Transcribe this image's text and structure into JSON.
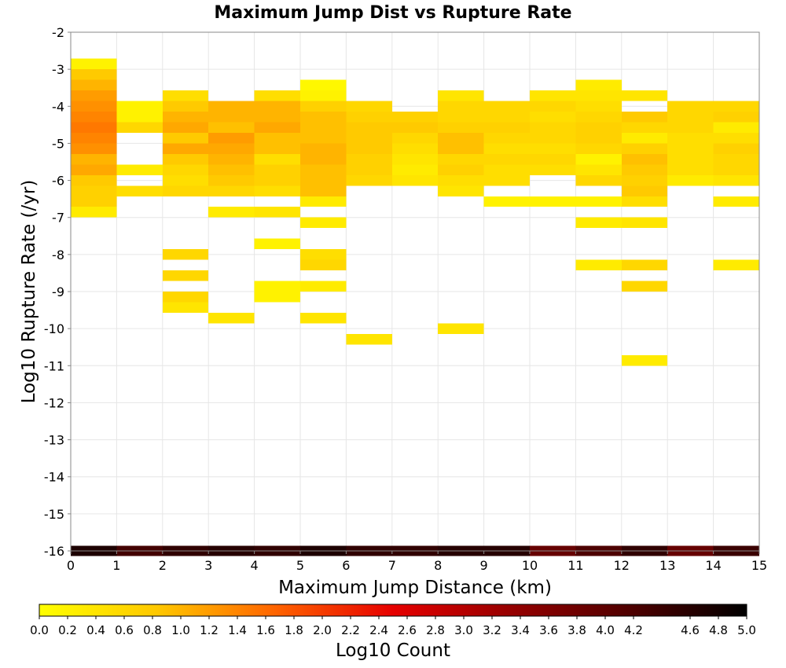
{
  "chart_data": {
    "type": "heatmap",
    "title": "Maximum Jump Dist vs Rupture Rate",
    "xlabel": "Maximum Jump Distance (km)",
    "ylabel": "Log10 Rupture Rate (/yr)",
    "xlim": [
      0,
      15
    ],
    "ylim": [
      -16,
      -2
    ],
    "x_ticks": [
      "0",
      "1",
      "2",
      "3",
      "4",
      "5",
      "6",
      "7",
      "8",
      "9",
      "10",
      "11",
      "12",
      "13",
      "14",
      "15"
    ],
    "y_ticks": [
      "-2",
      "-3",
      "-4",
      "-5",
      "-6",
      "-7",
      "-8",
      "-9",
      "-10",
      "-11",
      "-12",
      "-13",
      "-14",
      "-15",
      "-16"
    ],
    "x_bin_width": 1,
    "y_bin_height": 0.2857,
    "grid": true,
    "colorbar": {
      "label": "Log10 Count",
      "range": [
        0,
        5
      ],
      "ticks": [
        "0.0",
        "0.2",
        "0.4",
        "0.6",
        "0.8",
        "1.0",
        "1.2",
        "1.4",
        "1.6",
        "1.8",
        "2.0",
        "2.2",
        "2.4",
        "2.6",
        "2.8",
        "3.0",
        "3.2",
        "3.4",
        "3.6",
        "3.8",
        "4.0",
        "4.2",
        "4.6",
        "4.8",
        "5.0"
      ],
      "colormap": [
        "#ffff00",
        "#ffc800",
        "#ff6400",
        "#e60000",
        "#960000",
        "#500000",
        "#000000"
      ]
    },
    "cells": [
      {
        "x": 0,
        "y": -2.857,
        "v": 0.2
      },
      {
        "x": 0,
        "y": -3.143,
        "v": 0.8
      },
      {
        "x": 0,
        "y": -3.429,
        "v": 1.0
      },
      {
        "x": 0,
        "y": -3.714,
        "v": 1.2
      },
      {
        "x": 0,
        "y": -4.0,
        "v": 1.3
      },
      {
        "x": 0,
        "y": -4.286,
        "v": 1.4
      },
      {
        "x": 0,
        "y": -4.571,
        "v": 1.5
      },
      {
        "x": 0,
        "y": -4.857,
        "v": 1.4
      },
      {
        "x": 0,
        "y": -5.143,
        "v": 1.3
      },
      {
        "x": 0,
        "y": -5.429,
        "v": 1.0
      },
      {
        "x": 0,
        "y": -5.714,
        "v": 1.1
      },
      {
        "x": 0,
        "y": -6.0,
        "v": 0.8
      },
      {
        "x": 0,
        "y": -6.286,
        "v": 0.7
      },
      {
        "x": 0,
        "y": -6.571,
        "v": 0.7
      },
      {
        "x": 0,
        "y": -6.857,
        "v": 0.3
      },
      {
        "x": 1,
        "y": -4.0,
        "v": 0.2
      },
      {
        "x": 1,
        "y": -4.286,
        "v": 0.2
      },
      {
        "x": 1,
        "y": -4.571,
        "v": 0.6
      },
      {
        "x": 1,
        "y": -5.714,
        "v": 0.3
      },
      {
        "x": 1,
        "y": -6.286,
        "v": 0.5
      },
      {
        "x": 2,
        "y": -3.714,
        "v": 0.5
      },
      {
        "x": 2,
        "y": -4.0,
        "v": 0.8
      },
      {
        "x": 2,
        "y": -4.286,
        "v": 1.0
      },
      {
        "x": 2,
        "y": -4.571,
        "v": 1.1
      },
      {
        "x": 2,
        "y": -4.857,
        "v": 0.8
      },
      {
        "x": 2,
        "y": -5.143,
        "v": 1.1
      },
      {
        "x": 2,
        "y": -5.429,
        "v": 0.8
      },
      {
        "x": 2,
        "y": -5.714,
        "v": 0.6
      },
      {
        "x": 2,
        "y": -6.0,
        "v": 0.5
      },
      {
        "x": 2,
        "y": -6.286,
        "v": 0.6
      },
      {
        "x": 2,
        "y": -8.0,
        "v": 0.6
      },
      {
        "x": 2,
        "y": -8.571,
        "v": 0.6
      },
      {
        "x": 2,
        "y": -9.143,
        "v": 0.6
      },
      {
        "x": 2,
        "y": -9.429,
        "v": 0.4
      },
      {
        "x": 3,
        "y": -4.0,
        "v": 1.0
      },
      {
        "x": 3,
        "y": -4.286,
        "v": 1.0
      },
      {
        "x": 3,
        "y": -4.571,
        "v": 0.9
      },
      {
        "x": 3,
        "y": -4.857,
        "v": 1.2
      },
      {
        "x": 3,
        "y": -5.143,
        "v": 1.1
      },
      {
        "x": 3,
        "y": -5.429,
        "v": 1.0
      },
      {
        "x": 3,
        "y": -5.714,
        "v": 0.9
      },
      {
        "x": 3,
        "y": -6.0,
        "v": 0.8
      },
      {
        "x": 3,
        "y": -6.286,
        "v": 0.6
      },
      {
        "x": 3,
        "y": -6.857,
        "v": 0.3
      },
      {
        "x": 3,
        "y": -9.714,
        "v": 0.4
      },
      {
        "x": 4,
        "y": -3.714,
        "v": 0.5
      },
      {
        "x": 4,
        "y": -4.0,
        "v": 1.0
      },
      {
        "x": 4,
        "y": -4.286,
        "v": 1.0
      },
      {
        "x": 4,
        "y": -4.571,
        "v": 1.1
      },
      {
        "x": 4,
        "y": -4.857,
        "v": 0.9
      },
      {
        "x": 4,
        "y": -5.143,
        "v": 0.9
      },
      {
        "x": 4,
        "y": -5.429,
        "v": 0.5
      },
      {
        "x": 4,
        "y": -5.714,
        "v": 0.7
      },
      {
        "x": 4,
        "y": -6.0,
        "v": 0.7
      },
      {
        "x": 4,
        "y": -6.286,
        "v": 0.5
      },
      {
        "x": 4,
        "y": -6.857,
        "v": 0.4
      },
      {
        "x": 4,
        "y": -7.714,
        "v": 0.2
      },
      {
        "x": 4,
        "y": -8.857,
        "v": 0.2
      },
      {
        "x": 4,
        "y": -9.143,
        "v": 0.2
      },
      {
        "x": 5,
        "y": -3.429,
        "v": 0.1
      },
      {
        "x": 5,
        "y": -3.714,
        "v": 0.2
      },
      {
        "x": 5,
        "y": -4.0,
        "v": 0.7
      },
      {
        "x": 5,
        "y": -4.286,
        "v": 0.9
      },
      {
        "x": 5,
        "y": -4.571,
        "v": 0.9
      },
      {
        "x": 5,
        "y": -4.857,
        "v": 0.9
      },
      {
        "x": 5,
        "y": -5.143,
        "v": 1.0
      },
      {
        "x": 5,
        "y": -5.429,
        "v": 1.0
      },
      {
        "x": 5,
        "y": -5.714,
        "v": 0.9
      },
      {
        "x": 5,
        "y": -6.0,
        "v": 0.9
      },
      {
        "x": 5,
        "y": -6.286,
        "v": 0.9
      },
      {
        "x": 5,
        "y": -6.571,
        "v": 0.3
      },
      {
        "x": 5,
        "y": -7.143,
        "v": 0.3
      },
      {
        "x": 5,
        "y": -8.0,
        "v": 0.5
      },
      {
        "x": 5,
        "y": -8.286,
        "v": 0.6
      },
      {
        "x": 5,
        "y": -8.857,
        "v": 0.3
      },
      {
        "x": 5,
        "y": -9.714,
        "v": 0.4
      },
      {
        "x": 6,
        "y": -4.0,
        "v": 0.6
      },
      {
        "x": 6,
        "y": -4.286,
        "v": 0.7
      },
      {
        "x": 6,
        "y": -4.571,
        "v": 0.8
      },
      {
        "x": 6,
        "y": -4.857,
        "v": 0.8
      },
      {
        "x": 6,
        "y": -5.143,
        "v": 0.8
      },
      {
        "x": 6,
        "y": -5.429,
        "v": 0.7
      },
      {
        "x": 6,
        "y": -5.714,
        "v": 0.7
      },
      {
        "x": 6,
        "y": -6.0,
        "v": 0.6
      },
      {
        "x": 6,
        "y": -10.286,
        "v": 0.4
      },
      {
        "x": 7,
        "y": -4.286,
        "v": 0.7
      },
      {
        "x": 7,
        "y": -4.571,
        "v": 0.8
      },
      {
        "x": 7,
        "y": -4.857,
        "v": 0.6
      },
      {
        "x": 7,
        "y": -5.143,
        "v": 0.5
      },
      {
        "x": 7,
        "y": -5.429,
        "v": 0.4
      },
      {
        "x": 7,
        "y": -5.714,
        "v": 0.3
      },
      {
        "x": 7,
        "y": -6.0,
        "v": 0.4
      },
      {
        "x": 8,
        "y": -3.714,
        "v": 0.4
      },
      {
        "x": 8,
        "y": -4.0,
        "v": 0.6
      },
      {
        "x": 8,
        "y": -4.286,
        "v": 0.6
      },
      {
        "x": 8,
        "y": -4.571,
        "v": 0.7
      },
      {
        "x": 8,
        "y": -4.857,
        "v": 0.9
      },
      {
        "x": 8,
        "y": -5.143,
        "v": 0.9
      },
      {
        "x": 8,
        "y": -5.429,
        "v": 0.6
      },
      {
        "x": 8,
        "y": -5.714,
        "v": 0.7
      },
      {
        "x": 8,
        "y": -6.0,
        "v": 0.5
      },
      {
        "x": 8,
        "y": -6.286,
        "v": 0.4
      },
      {
        "x": 8,
        "y": -10.0,
        "v": 0.4
      },
      {
        "x": 9,
        "y": -4.0,
        "v": 0.6
      },
      {
        "x": 9,
        "y": -4.286,
        "v": 0.6
      },
      {
        "x": 9,
        "y": -4.571,
        "v": 0.7
      },
      {
        "x": 9,
        "y": -4.857,
        "v": 0.6
      },
      {
        "x": 9,
        "y": -5.143,
        "v": 0.5
      },
      {
        "x": 9,
        "y": -5.429,
        "v": 0.6
      },
      {
        "x": 9,
        "y": -5.714,
        "v": 0.5
      },
      {
        "x": 9,
        "y": -6.0,
        "v": 0.5
      },
      {
        "x": 9,
        "y": -6.571,
        "v": 0.2
      },
      {
        "x": 10,
        "y": -3.714,
        "v": 0.4
      },
      {
        "x": 10,
        "y": -4.0,
        "v": 0.6
      },
      {
        "x": 10,
        "y": -4.286,
        "v": 0.5
      },
      {
        "x": 10,
        "y": -4.571,
        "v": 0.6
      },
      {
        "x": 10,
        "y": -4.857,
        "v": 0.6
      },
      {
        "x": 10,
        "y": -5.143,
        "v": 0.5
      },
      {
        "x": 10,
        "y": -5.429,
        "v": 0.6
      },
      {
        "x": 10,
        "y": -5.714,
        "v": 0.5
      },
      {
        "x": 10,
        "y": -6.571,
        "v": 0.2
      },
      {
        "x": 11,
        "y": -3.429,
        "v": 0.3
      },
      {
        "x": 11,
        "y": -3.714,
        "v": 0.4
      },
      {
        "x": 11,
        "y": -4.0,
        "v": 0.5
      },
      {
        "x": 11,
        "y": -4.286,
        "v": 0.6
      },
      {
        "x": 11,
        "y": -4.571,
        "v": 0.7
      },
      {
        "x": 11,
        "y": -4.857,
        "v": 0.7
      },
      {
        "x": 11,
        "y": -5.143,
        "v": 0.6
      },
      {
        "x": 11,
        "y": -5.429,
        "v": 0.2
      },
      {
        "x": 11,
        "y": -5.714,
        "v": 0.4
      },
      {
        "x": 11,
        "y": -6.0,
        "v": 0.6
      },
      {
        "x": 11,
        "y": -6.571,
        "v": 0.2
      },
      {
        "x": 11,
        "y": -7.143,
        "v": 0.3
      },
      {
        "x": 11,
        "y": -8.286,
        "v": 0.3
      },
      {
        "x": 12,
        "y": -3.714,
        "v": 0.4
      },
      {
        "x": 12,
        "y": -4.286,
        "v": 0.8
      },
      {
        "x": 12,
        "y": -4.571,
        "v": 0.6
      },
      {
        "x": 12,
        "y": -4.857,
        "v": 0.3
      },
      {
        "x": 12,
        "y": -5.143,
        "v": 0.7
      },
      {
        "x": 12,
        "y": -5.429,
        "v": 0.9
      },
      {
        "x": 12,
        "y": -5.714,
        "v": 0.8
      },
      {
        "x": 12,
        "y": -6.0,
        "v": 0.7
      },
      {
        "x": 12,
        "y": -6.286,
        "v": 0.8
      },
      {
        "x": 12,
        "y": -6.571,
        "v": 0.5
      },
      {
        "x": 12,
        "y": -7.143,
        "v": 0.4
      },
      {
        "x": 12,
        "y": -8.286,
        "v": 0.6
      },
      {
        "x": 12,
        "y": -8.857,
        "v": 0.6
      },
      {
        "x": 12,
        "y": -10.857,
        "v": 0.3
      },
      {
        "x": 13,
        "y": -4.0,
        "v": 0.6
      },
      {
        "x": 13,
        "y": -4.286,
        "v": 0.6
      },
      {
        "x": 13,
        "y": -4.571,
        "v": 0.6
      },
      {
        "x": 13,
        "y": -4.857,
        "v": 0.5
      },
      {
        "x": 13,
        "y": -5.143,
        "v": 0.5
      },
      {
        "x": 13,
        "y": -5.429,
        "v": 0.5
      },
      {
        "x": 13,
        "y": -5.714,
        "v": 0.5
      },
      {
        "x": 13,
        "y": -6.0,
        "v": 0.3
      },
      {
        "x": 14,
        "y": -4.0,
        "v": 0.6
      },
      {
        "x": 14,
        "y": -4.286,
        "v": 0.7
      },
      {
        "x": 14,
        "y": -4.571,
        "v": 0.3
      },
      {
        "x": 14,
        "y": -4.857,
        "v": 0.5
      },
      {
        "x": 14,
        "y": -5.143,
        "v": 0.7
      },
      {
        "x": 14,
        "y": -5.429,
        "v": 0.6
      },
      {
        "x": 14,
        "y": -5.714,
        "v": 0.6
      },
      {
        "x": 14,
        "y": -6.0,
        "v": 0.4
      },
      {
        "x": 14,
        "y": -6.571,
        "v": 0.3
      },
      {
        "x": 14,
        "y": -8.286,
        "v": 0.3
      },
      {
        "x": 0,
        "y": -16.0,
        "v": 4.7
      },
      {
        "x": 1,
        "y": -16.0,
        "v": 4.3
      },
      {
        "x": 2,
        "y": -16.0,
        "v": 4.5
      },
      {
        "x": 3,
        "y": -16.0,
        "v": 4.6
      },
      {
        "x": 4,
        "y": -16.0,
        "v": 4.5
      },
      {
        "x": 5,
        "y": -16.0,
        "v": 4.7
      },
      {
        "x": 6,
        "y": -16.0,
        "v": 4.5
      },
      {
        "x": 7,
        "y": -16.0,
        "v": 4.5
      },
      {
        "x": 8,
        "y": -16.0,
        "v": 4.6
      },
      {
        "x": 9,
        "y": -16.0,
        "v": 4.6
      },
      {
        "x": 10,
        "y": -16.0,
        "v": 3.9
      },
      {
        "x": 11,
        "y": -16.0,
        "v": 4.2
      },
      {
        "x": 12,
        "y": -16.0,
        "v": 4.5
      },
      {
        "x": 13,
        "y": -16.0,
        "v": 3.9
      },
      {
        "x": 14,
        "y": -16.0,
        "v": 4.4
      }
    ]
  }
}
